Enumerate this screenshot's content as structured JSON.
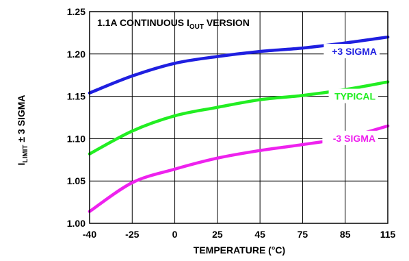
{
  "chart_data": {
    "type": "line",
    "annotation": {
      "main": "1.1A CONTINUOUS I",
      "sub": "OUT",
      "tail": " VERSION"
    },
    "xlabel": "TEMPERATURE (°C)",
    "ylabel": {
      "main": "I",
      "sub": "LIMIT",
      "tail": " ± 3 SIGMA"
    },
    "x_ticks": [
      "-40",
      "-25",
      "0",
      "25",
      "45",
      "75",
      "85",
      "115"
    ],
    "y_ticks": [
      "1.00",
      "1.05",
      "1.10",
      "1.15",
      "1.20",
      "1.25"
    ],
    "ylim": [
      1.0,
      1.25
    ],
    "grid": true,
    "series": [
      {
        "name": "+3 SIGMA",
        "color": "#1f1fe0",
        "x": [
          "-40",
          "-25",
          "0",
          "25",
          "45",
          "75",
          "85",
          "115"
        ],
        "values": [
          1.154,
          1.174,
          1.189,
          1.197,
          1.203,
          1.207,
          1.213,
          1.22
        ]
      },
      {
        "name": "TYPICAL",
        "color": "#22ee22",
        "x": [
          "-40",
          "-25",
          "0",
          "25",
          "45",
          "75",
          "85",
          "115"
        ],
        "values": [
          1.082,
          1.109,
          1.127,
          1.137,
          1.146,
          1.151,
          1.158,
          1.167
        ]
      },
      {
        "name": "-3 SIGMA",
        "color": "#ee22ee",
        "x": [
          "-40",
          "-25",
          "0",
          "25",
          "45",
          "75",
          "85",
          "115"
        ],
        "values": [
          1.014,
          1.048,
          1.064,
          1.077,
          1.086,
          1.093,
          1.101,
          1.115
        ]
      }
    ]
  }
}
